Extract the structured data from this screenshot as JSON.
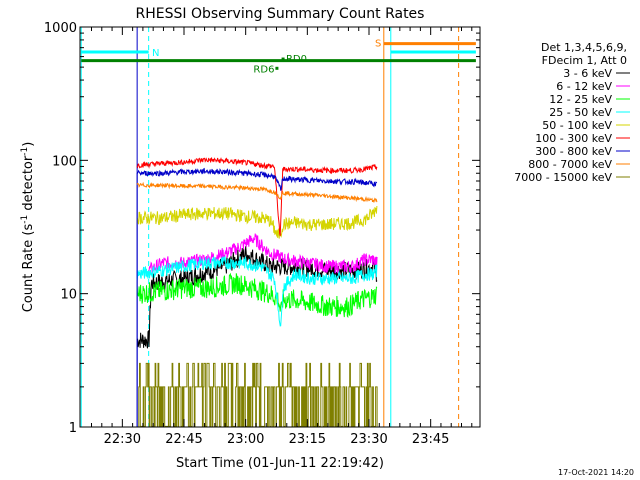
{
  "chart_data": {
    "type": "line",
    "title": "RHESSI Observing Summary Count Rates",
    "xlabel": "Start Time (01-Jun-11 22:19:42)",
    "ylabel_main": "Count Rate (s",
    "ylabel_sup1": "-1",
    "ylabel_mid": " detector",
    "ylabel_sup2": "-1",
    "ylabel_end": ")",
    "yscale": "log",
    "ylim": [
      1,
      1000
    ],
    "y_ticks": [
      {
        "v": 1,
        "label": "1"
      },
      {
        "v": 10,
        "label": "10"
      },
      {
        "v": 100,
        "label": "100"
      },
      {
        "v": 1000,
        "label": "1000"
      }
    ],
    "xlim": [
      "22:19:42",
      "23:57:00"
    ],
    "x_ticks": [
      {
        "m": 30,
        "label": "22:30"
      },
      {
        "m": 45,
        "label": "22:45"
      },
      {
        "m": 60,
        "label": "23:00"
      },
      {
        "m": 75,
        "label": "23:15"
      },
      {
        "m": 90,
        "label": "23:30"
      },
      {
        "m": 105,
        "label": "23:45"
      }
    ],
    "legend_header": [
      "Det 1,3,4,5,6,9,",
      "FDecim 1, Att 0"
    ],
    "legend_position": "right",
    "series": [
      {
        "name": "3 - 6 keV",
        "color": "#000000",
        "points": [
          [
            33.6,
            4.5
          ],
          [
            36.5,
            4.5
          ],
          [
            37,
            12
          ],
          [
            45,
            13
          ],
          [
            55,
            16
          ],
          [
            60,
            20
          ],
          [
            66,
            16
          ],
          [
            72,
            16
          ],
          [
            80,
            15
          ],
          [
            88,
            15
          ],
          [
            91,
            16
          ],
          [
            92,
            14
          ]
        ]
      },
      {
        "name": "6 - 12 keV",
        "color": "#ff00ff",
        "points": [
          [
            36.4,
            15
          ],
          [
            40,
            17
          ],
          [
            45,
            17
          ],
          [
            50,
            18
          ],
          [
            55,
            20
          ],
          [
            58,
            22
          ],
          [
            62,
            26
          ],
          [
            66,
            20
          ],
          [
            70,
            18
          ],
          [
            75,
            17
          ],
          [
            80,
            16
          ],
          [
            86,
            16
          ],
          [
            89,
            18
          ],
          [
            91,
            18
          ],
          [
            92,
            17
          ]
        ]
      },
      {
        "name": "12 - 25 keV",
        "color": "#00ff00",
        "points": [
          [
            33.6,
            10
          ],
          [
            40,
            10.5
          ],
          [
            45,
            11
          ],
          [
            50,
            11
          ],
          [
            55,
            11.5
          ],
          [
            58,
            12
          ],
          [
            62,
            11
          ],
          [
            66,
            10
          ],
          [
            68,
            9
          ],
          [
            68.6,
            7
          ],
          [
            69,
            9
          ],
          [
            72,
            9
          ],
          [
            76,
            8.5
          ],
          [
            80,
            8
          ],
          [
            85,
            8
          ],
          [
            88,
            9
          ],
          [
            91,
            9.5
          ],
          [
            92,
            10
          ]
        ]
      },
      {
        "name": "25 - 50 keV",
        "color": "#00ffff",
        "points": [
          [
            33.6,
            14
          ],
          [
            40,
            15
          ],
          [
            45,
            16
          ],
          [
            50,
            17
          ],
          [
            55,
            17
          ],
          [
            60,
            17
          ],
          [
            64,
            16
          ],
          [
            67,
            13
          ],
          [
            68.6,
            5.5
          ],
          [
            69,
            11
          ],
          [
            72,
            14
          ],
          [
            76,
            13
          ],
          [
            80,
            13
          ],
          [
            86,
            13
          ],
          [
            89,
            14
          ],
          [
            91,
            14
          ],
          [
            92,
            15
          ]
        ]
      },
      {
        "name": "50 - 100 keV",
        "color": "#d4d400",
        "points": [
          [
            33.6,
            37
          ],
          [
            40,
            37
          ],
          [
            45,
            39
          ],
          [
            50,
            40
          ],
          [
            55,
            40
          ],
          [
            60,
            38
          ],
          [
            64,
            37
          ],
          [
            66,
            35
          ],
          [
            67.8,
            27
          ],
          [
            68.6,
            29
          ],
          [
            69,
            33
          ],
          [
            72,
            34
          ],
          [
            76,
            33
          ],
          [
            80,
            33
          ],
          [
            86,
            34
          ],
          [
            89,
            36
          ],
          [
            91,
            40
          ],
          [
            92,
            45
          ]
        ]
      },
      {
        "name": "100 - 300 keV",
        "color": "#ff0000",
        "points": [
          [
            33.6,
            92
          ],
          [
            40,
            95
          ],
          [
            45,
            97
          ],
          [
            50,
            101
          ],
          [
            55,
            99
          ],
          [
            60,
            96
          ],
          [
            64,
            92
          ],
          [
            67,
            90
          ],
          [
            68.4,
            26
          ],
          [
            69,
            86
          ],
          [
            72,
            86
          ],
          [
            76,
            85
          ],
          [
            80,
            84
          ],
          [
            86,
            84
          ],
          [
            89,
            86
          ],
          [
            91,
            88
          ],
          [
            92,
            90
          ]
        ]
      },
      {
        "name": "300 - 800 keV",
        "color": "#0000c8",
        "points": [
          [
            33.6,
            80
          ],
          [
            40,
            80
          ],
          [
            45,
            82
          ],
          [
            50,
            83
          ],
          [
            55,
            82
          ],
          [
            60,
            80
          ],
          [
            64,
            78
          ],
          [
            67,
            76
          ],
          [
            68.6,
            60
          ],
          [
            69,
            73
          ],
          [
            72,
            72
          ],
          [
            76,
            71
          ],
          [
            80,
            70
          ],
          [
            86,
            69
          ],
          [
            89,
            68
          ],
          [
            91,
            67
          ],
          [
            92,
            66
          ]
        ]
      },
      {
        "name": "800 - 7000 keV",
        "color": "#ff7f00",
        "points": [
          [
            33.6,
            65
          ],
          [
            40,
            65
          ],
          [
            45,
            64
          ],
          [
            50,
            64
          ],
          [
            55,
            63
          ],
          [
            60,
            62
          ],
          [
            64,
            61
          ],
          [
            67,
            58
          ],
          [
            68.6,
            52
          ],
          [
            69,
            57
          ],
          [
            72,
            56
          ],
          [
            76,
            55
          ],
          [
            80,
            54
          ],
          [
            86,
            52
          ],
          [
            89,
            51
          ],
          [
            91,
            50
          ],
          [
            92,
            50
          ]
        ]
      },
      {
        "name": "7000 - 15000 keV",
        "color": "#7f7f00",
        "points": []
      }
    ],
    "bands": [
      {
        "label": "N",
        "color": "#00ffff",
        "y": 650,
        "from": 20,
        "to": 36.4
      },
      {
        "label": "S",
        "color": "#ff7f00",
        "y": 750,
        "from": 93.6,
        "to": 116
      },
      {
        "label": "",
        "color": "#00ffff",
        "y": 650,
        "from": 95.3,
        "to": 116
      },
      {
        "label": "",
        "color": "#008000",
        "y": 560,
        "from": 20,
        "to": 116
      }
    ],
    "annotations": [
      {
        "text": "RD6",
        "color": "#008000"
      },
      {
        "text": "RD0",
        "color": "#008000"
      }
    ],
    "vertical_lines": [
      {
        "m": 20.0,
        "color": "#00ffff",
        "style": "solid"
      },
      {
        "m": 36.4,
        "color": "#00ffff",
        "style": "dashed"
      },
      {
        "m": 33.6,
        "color": "#0000c8",
        "style": "solid"
      },
      {
        "m": 93.6,
        "color": "#ff7f00",
        "style": "solid"
      },
      {
        "m": 95.3,
        "color": "#00ffff",
        "style": "solid"
      },
      {
        "m": 111.8,
        "color": "#ff7f00",
        "style": "dashed"
      }
    ],
    "footer_date": "17-Oct-2021 14:20"
  }
}
